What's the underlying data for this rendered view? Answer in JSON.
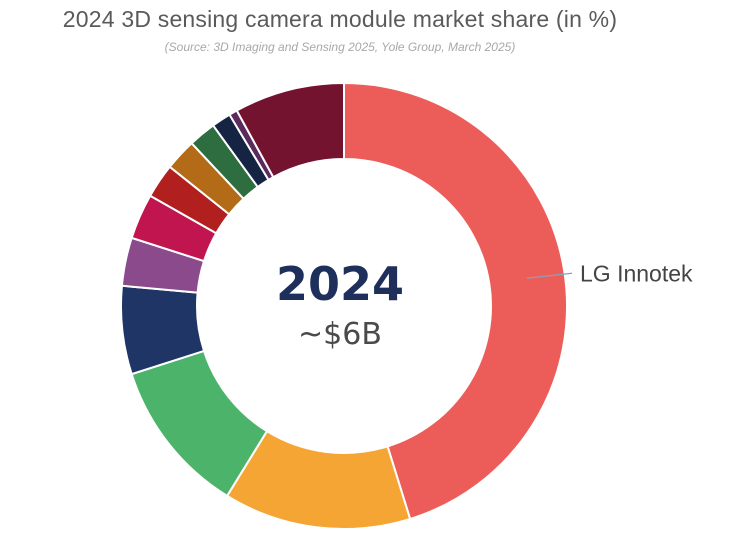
{
  "chart_data": {
    "type": "pie",
    "variant": "donut",
    "title": "2024 3D sensing camera module market share (in %)",
    "subtitle": "(Source: 3D Imaging and Sensing 2025, Yole Group, March 2025)",
    "center_label": "2024",
    "center_value": "~$6B",
    "slices": [
      {
        "name": "LG Innotek",
        "value": 45.3,
        "color": "#ec5d5a",
        "labeled": true
      },
      {
        "name": "",
        "value": 13.6,
        "color": "#f4a534",
        "labeled": false
      },
      {
        "name": "",
        "value": 11.3,
        "color": "#4bb46a",
        "labeled": false
      },
      {
        "name": "",
        "value": 6.4,
        "color": "#1f3566",
        "labeled": false
      },
      {
        "name": "",
        "value": 3.5,
        "color": "#8b4a8c",
        "labeled": false
      },
      {
        "name": "",
        "value": 3.3,
        "color": "#c0154f",
        "labeled": false
      },
      {
        "name": "",
        "value": 2.5,
        "color": "#b11f1f",
        "labeled": false
      },
      {
        "name": "",
        "value": 2.3,
        "color": "#b36b17",
        "labeled": false
      },
      {
        "name": "",
        "value": 2.0,
        "color": "#2d6d3f",
        "labeled": false
      },
      {
        "name": "",
        "value": 1.4,
        "color": "#162444",
        "labeled": false
      },
      {
        "name": "",
        "value": 0.6,
        "color": "#5b2a5e",
        "labeled": false
      },
      {
        "name": "",
        "value": 8.0,
        "color": "#74132f",
        "labeled": false
      }
    ],
    "start": "12 o'clock",
    "direction": "clockwise"
  }
}
